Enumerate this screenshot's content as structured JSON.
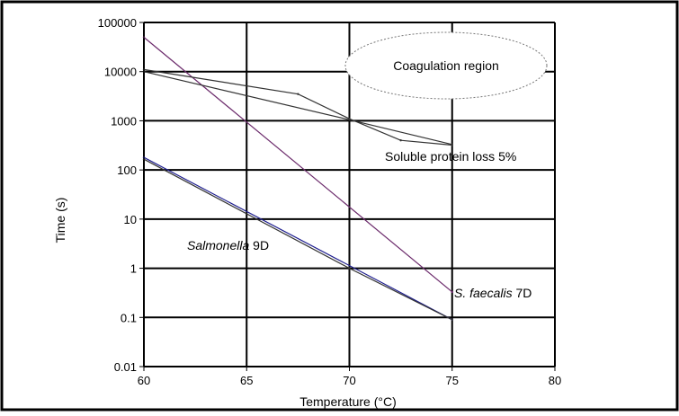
{
  "chart_data": {
    "type": "line",
    "title": "",
    "xlabel": "Temperature (°C)",
    "ylabel": "Time (s)",
    "xlim": [
      60,
      80
    ],
    "ylim": [
      0.01,
      100000
    ],
    "y_scale": "log",
    "grid": true,
    "x_ticks": [
      60,
      65,
      70,
      75,
      80
    ],
    "x_tick_labels": [
      "60",
      "65",
      "70",
      "75",
      "80"
    ],
    "y_ticks": [
      0.01,
      0.1,
      1,
      10,
      100,
      1000,
      10000,
      100000
    ],
    "y_tick_labels": [
      "0.01",
      "0.1",
      "1",
      "10",
      "100",
      "1000",
      "10000",
      "100000"
    ],
    "series": [
      {
        "color": "#6b2a6b",
        "x": [
          60,
          75
        ],
        "y": [
          50000,
          0.33
        ]
      },
      {
        "color": "#333333",
        "x": [
          60,
          67.5,
          70,
          72.5,
          75
        ],
        "y": [
          11000,
          3500,
          1100,
          400,
          320
        ]
      },
      {
        "color": "#333333",
        "x": [
          60,
          70,
          75
        ],
        "y": [
          10000,
          1050,
          330
        ]
      },
      {
        "color": "#1f1f8f",
        "x": [
          60,
          75
        ],
        "y": [
          180,
          0.09
        ]
      },
      {
        "color": "#333333",
        "x": [
          60,
          70,
          75
        ],
        "y": [
          165,
          1.0,
          0.09
        ]
      }
    ],
    "annotations": [
      {
        "text": "Coagulation region",
        "italic": ""
      },
      {
        "text": "Soluble protein loss 5%",
        "italic": ""
      },
      {
        "italic": "Salmonella",
        "text": " 9D"
      },
      {
        "italic": "S. faecalis",
        "text": " 7D"
      }
    ]
  }
}
